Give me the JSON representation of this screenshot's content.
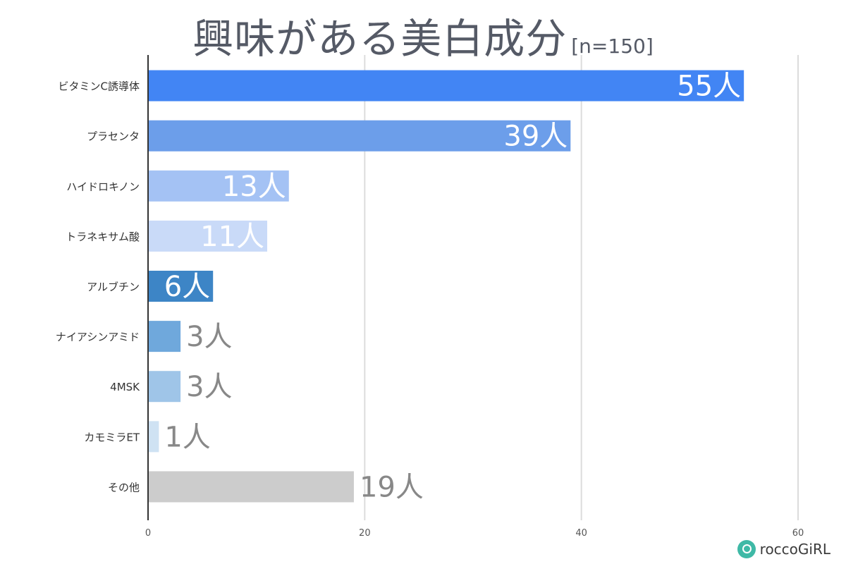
{
  "chart_data": {
    "type": "bar",
    "orientation": "horizontal",
    "title": "興味がある美白成分",
    "subtitle": "[n=150]",
    "categories": [
      "ビタミンC誘導体",
      "プラセンタ",
      "ハイドロキノン",
      "トラネキサム酸",
      "アルブチン",
      "ナイアシンアミド",
      "4MSK",
      "カモミラET",
      "その他"
    ],
    "values": [
      55,
      39,
      13,
      11,
      6,
      3,
      3,
      1,
      19
    ],
    "data_labels": [
      "55人",
      "39人",
      "13人",
      "11人",
      "6人",
      "3人",
      "3人",
      "1人",
      "19人"
    ],
    "bar_colors": [
      "#4285f4",
      "#6c9eea",
      "#a4c2f4",
      "#c9daf8",
      "#3d85c6",
      "#6fa8dc",
      "#9fc5e8",
      "#cfe2f3",
      "#cccccc"
    ],
    "label_colors": [
      "#ffffff",
      "#ffffff",
      "#ffffff",
      "#ffffff",
      "#ffffff",
      "#888888",
      "#888888",
      "#888888",
      "#888888"
    ],
    "x_ticks": [
      0,
      20,
      40,
      60
    ],
    "xlim": [
      0,
      60
    ],
    "grid": true,
    "legend": "none"
  },
  "brand": {
    "name": "roccoGiRL",
    "color": "#3fb9a6"
  }
}
